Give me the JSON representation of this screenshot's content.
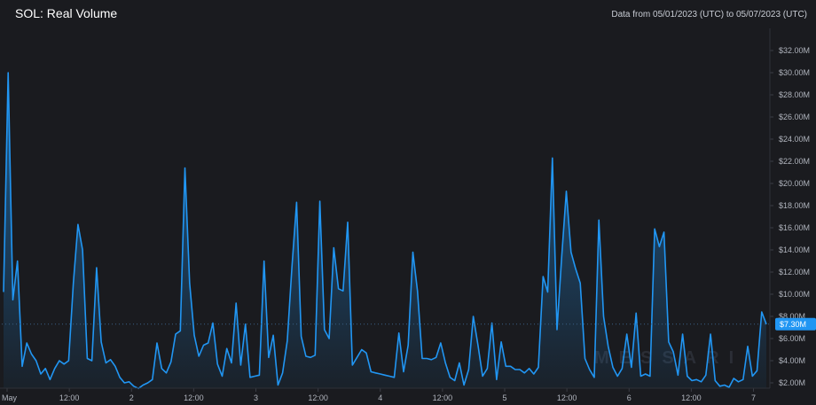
{
  "header": {
    "title": "SOL: Real Volume",
    "date_range": "Data from 05/01/2023 (UTC) to 05/07/2023 (UTC)"
  },
  "watermark": "MESSARI",
  "colors": {
    "background": "#1a1b1f",
    "line": "#2196f3",
    "grid": "#24262c",
    "badge": "#2196f3"
  },
  "chart_data": {
    "type": "area",
    "title": "SOL: Real Volume",
    "xlabel": "",
    "ylabel": "",
    "y_unit": "$M",
    "ylim": [
      1.2,
      33
    ],
    "xlim": [
      0,
      145
    ],
    "grid": false,
    "x_tick_labels": [
      {
        "x": 0,
        "label": "May"
      },
      {
        "x": 12,
        "label": "12:00"
      },
      {
        "x": 24,
        "label": "2"
      },
      {
        "x": 36,
        "label": "12:00"
      },
      {
        "x": 48,
        "label": "3"
      },
      {
        "x": 60,
        "label": "12:00"
      },
      {
        "x": 72,
        "label": "4"
      },
      {
        "x": 84,
        "label": "12:00"
      },
      {
        "x": 96,
        "label": "5"
      },
      {
        "x": 108,
        "label": "12:00"
      },
      {
        "x": 120,
        "label": "6"
      },
      {
        "x": 132,
        "label": "12:00"
      },
      {
        "x": 144,
        "label": "7"
      }
    ],
    "y_ticks": [
      2,
      4,
      6,
      8,
      10,
      12,
      14,
      16,
      18,
      20,
      22,
      24,
      26,
      28,
      30,
      32
    ],
    "y_tick_labels": [
      "$2.00M",
      "$4.00M",
      "$6.00M",
      "$8.00M",
      "$10.00M",
      "$12.00M",
      "$14.00M",
      "$16.00M",
      "$18.00M",
      "$20.00M",
      "$22.00M",
      "$24.00M",
      "$26.00M",
      "$28.00M",
      "$30.00M",
      "$32.00M"
    ],
    "last_value_label": "$7.30M",
    "last_value": 7.3,
    "series": [
      {
        "values": [
          10.2,
          30,
          9.5,
          13,
          3.5,
          5.6,
          4.6,
          4,
          2.8,
          3.3,
          2.3,
          3.3,
          4,
          3.7,
          4,
          11,
          16.3,
          14,
          4.2,
          4,
          12.4,
          5.7,
          3.8,
          4.1,
          3.5,
          2.5,
          2,
          2.1,
          1.7,
          1.5,
          1.8,
          2,
          2.3,
          5.6,
          3.3,
          2.9,
          3.9,
          6.4,
          6.7,
          21.4,
          11,
          6.3,
          4.4,
          5.4,
          5.6,
          7.4,
          3.7,
          2.6,
          5.1,
          3.8,
          9.2,
          3.6,
          7.3,
          2.5,
          2.6,
          2.7,
          13,
          4.3,
          6.3,
          1.8,
          2.9,
          5.8,
          12.4,
          18.3,
          6.2,
          4.4,
          4.3,
          4.5,
          18.4,
          6.8,
          6,
          14.2,
          10.5,
          10.3,
          16.5,
          3.6,
          4.3,
          5,
          4.7,
          3,
          2.9,
          2.8,
          2.7,
          2.6,
          2.5,
          6.5,
          3,
          5.4,
          13.8,
          10.3,
          4.2,
          4.2,
          4.1,
          4.3,
          5.6,
          3.8,
          2.5,
          2.2,
          3.8,
          1.8,
          3.2,
          8,
          5.4,
          2.6,
          3.3,
          7.4,
          2.3,
          5.7,
          3.5,
          3.5,
          3.2,
          3.2,
          2.9,
          3.3,
          2.8,
          3.4,
          11.6,
          10.2,
          22.3,
          6.8,
          13.4,
          19.3,
          13.8,
          12.3,
          11,
          4.2,
          3.2,
          2.5,
          16.7,
          8,
          5.3,
          3.4,
          2.6,
          3.3,
          6.4,
          3.4,
          8.3,
          2.6,
          2.8,
          2.6,
          15.9,
          14.3,
          15.6,
          5.7,
          4.8,
          2.7,
          6.4,
          2.6,
          2.2,
          2.3,
          2.1,
          2.7,
          6.4,
          2.2,
          1.7,
          1.8,
          1.6,
          2.4,
          2.1,
          2.3,
          5.3,
          2.6,
          3.1,
          8.4,
          7.3
        ]
      }
    ]
  }
}
